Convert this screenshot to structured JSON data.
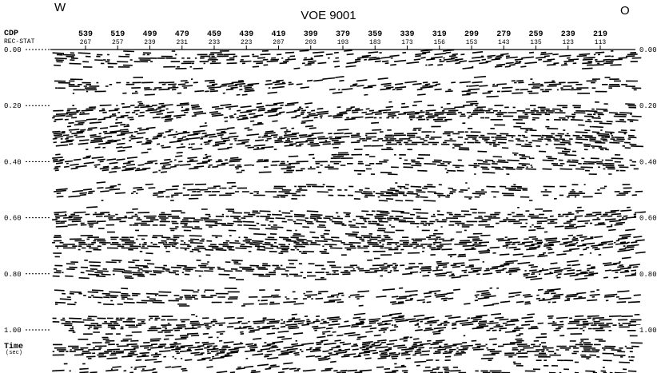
{
  "header": {
    "title": "VOE 9001",
    "left_label": "W",
    "right_label": "O"
  },
  "axis_top": {
    "cdp_label": "CDP",
    "rec_label": "REC-STAT",
    "cdp": [
      "539",
      "519",
      "499",
      "479",
      "459",
      "439",
      "419",
      "399",
      "379",
      "359",
      "339",
      "319",
      "299",
      "279",
      "259",
      "239",
      "219"
    ],
    "rec_stat": [
      "267",
      "257",
      "239",
      "231",
      "233",
      "223",
      "207",
      "203",
      "193",
      "183",
      "173",
      "156",
      "153",
      "143",
      "135",
      "123",
      "113"
    ]
  },
  "axis_time": {
    "ticks": [
      "0.00",
      "0.20",
      "0.40",
      "0.60",
      "0.80",
      "1.00"
    ],
    "label": "Time",
    "unit": "(sec)"
  }
}
